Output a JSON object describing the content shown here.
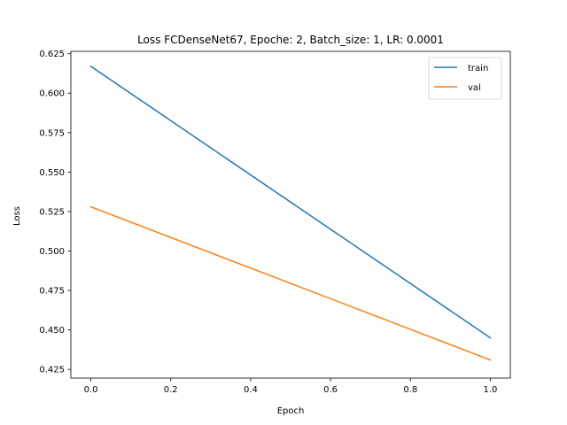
{
  "chart_data": {
    "type": "line",
    "title": "Loss FCDenseNet67, Epoche: 2, Batch_size: 1, LR: 0.0001",
    "xlabel": "Epoch",
    "ylabel": "Loss",
    "xlim": [
      -0.05,
      1.05
    ],
    "ylim": [
      0.4195,
      0.6265
    ],
    "x_ticks": [
      0.0,
      0.2,
      0.4,
      0.6,
      0.8,
      1.0
    ],
    "x_tick_labels": [
      "0.0",
      "0.2",
      "0.4",
      "0.6",
      "0.8",
      "1.0"
    ],
    "y_ticks": [
      0.425,
      0.45,
      0.475,
      0.5,
      0.525,
      0.55,
      0.575,
      0.6,
      0.625
    ],
    "y_tick_labels": [
      "0.425",
      "0.450",
      "0.475",
      "0.500",
      "0.525",
      "0.550",
      "0.575",
      "0.600",
      "0.625"
    ],
    "grid": false,
    "legend_position": "top-right",
    "series": [
      {
        "name": "train",
        "color": "#1f77b4",
        "x": [
          0,
          1
        ],
        "y": [
          0.617,
          0.445
        ]
      },
      {
        "name": "val",
        "color": "#ff7f0e",
        "x": [
          0,
          1
        ],
        "y": [
          0.528,
          0.431
        ]
      }
    ]
  }
}
